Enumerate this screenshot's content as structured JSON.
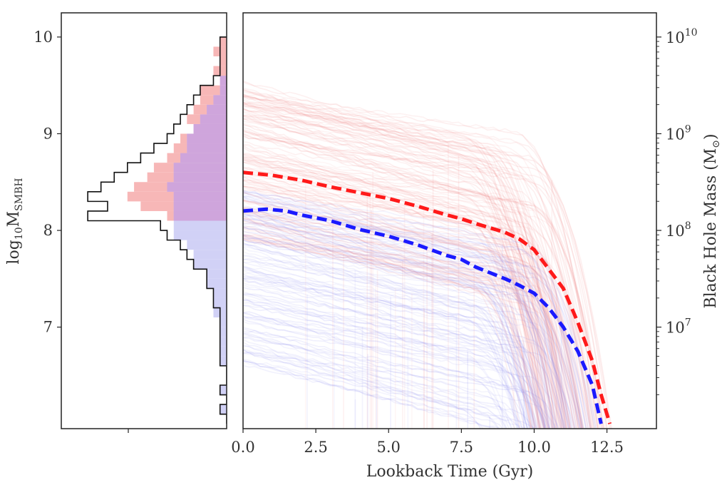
{
  "chart_data": [
    {
      "type": "histogram",
      "panel": "left",
      "orientation": "horizontal",
      "ylabel_main": "log",
      "ylabel_sub": "10",
      "ylabel_tail": "M",
      "ylabel_subscript": "SMBH",
      "ylim": [
        5.95,
        10.25
      ],
      "yticks": [
        7,
        8,
        9,
        10
      ],
      "yticklabels": [
        "7",
        "8",
        "9",
        "10"
      ],
      "bin_edges": [
        6.0,
        6.1,
        6.2,
        6.3,
        6.4,
        6.5,
        6.6,
        6.7,
        6.8,
        6.9,
        7.0,
        7.1,
        7.2,
        7.3,
        7.4,
        7.5,
        7.6,
        7.7,
        7.8,
        7.9,
        8.0,
        8.1,
        8.2,
        8.3,
        8.4,
        8.5,
        8.6,
        8.7,
        8.8,
        8.9,
        9.0,
        9.1,
        9.2,
        9.3,
        9.4,
        9.5,
        9.6,
        9.7,
        9.8,
        9.9,
        10.0
      ],
      "series": [
        {
          "name": "all",
          "style": "step outline",
          "color": "#111111",
          "counts": [
            0,
            1,
            0,
            1,
            0,
            0,
            1,
            1,
            1,
            1,
            1,
            1,
            2,
            2,
            3,
            3,
            5,
            6,
            7,
            9,
            10,
            21,
            18,
            21,
            19,
            17,
            15,
            13,
            11,
            9,
            8,
            7,
            6,
            5,
            4,
            2,
            1,
            1,
            1,
            1,
            0
          ]
        },
        {
          "name": "red population",
          "style": "filled",
          "color": "#f7b7b7",
          "counts": [
            0,
            0,
            0,
            0,
            0,
            0,
            0,
            0,
            0,
            0,
            0,
            0,
            0,
            0,
            0,
            0,
            0,
            0,
            0,
            0,
            0,
            9,
            13,
            15,
            14,
            12,
            11,
            9,
            8,
            7,
            5,
            6,
            5,
            4,
            4,
            1,
            2,
            1,
            2,
            1,
            0
          ]
        },
        {
          "name": "blue population",
          "style": "filled",
          "color": "#c9c9f5",
          "counts": [
            0,
            1,
            0,
            1,
            0,
            0,
            1,
            1,
            1,
            1,
            1,
            2,
            2,
            2,
            3,
            3,
            5,
            5,
            6,
            8,
            8,
            8,
            8,
            8,
            9,
            8,
            8,
            7,
            6,
            6,
            5,
            4,
            3,
            2,
            1,
            1,
            0,
            0,
            0,
            0,
            0
          ]
        }
      ],
      "xmax_count": 25
    },
    {
      "type": "line",
      "panel": "main",
      "xlabel": "Lookback Time (Gyr)",
      "ylabel": "Black Hole Mass (M",
      "ylabel_symbol": "⊙",
      "ylabel_close": ")",
      "xlim": [
        0.0,
        14.2
      ],
      "xticks": [
        0.0,
        2.5,
        5.0,
        7.5,
        10.0,
        12.5
      ],
      "xticklabels": [
        "0.0",
        "2.5",
        "5.0",
        "7.5",
        "10.0",
        "12.5"
      ],
      "ylim": [
        5.95,
        10.25
      ],
      "yscale": "log",
      "right_ticks": [
        {
          "base": "10",
          "exp": "7",
          "value": 7
        },
        {
          "base": "10",
          "exp": "8",
          "value": 8
        },
        {
          "base": "10",
          "exp": "9",
          "value": 9
        },
        {
          "base": "10",
          "exp": "10",
          "value": 10
        }
      ],
      "series": [
        {
          "name": "red population median",
          "style": "dashed",
          "color": "#ff1a1a",
          "x": [
            0.0,
            1.0,
            2.0,
            3.0,
            4.0,
            5.0,
            6.0,
            7.0,
            7.5,
            8.0,
            9.0,
            9.5,
            10.0,
            10.5,
            11.0,
            11.5,
            12.0,
            12.3,
            12.6
          ],
          "y": [
            8.6,
            8.57,
            8.52,
            8.45,
            8.39,
            8.33,
            8.25,
            8.16,
            8.12,
            8.07,
            7.98,
            7.91,
            7.8,
            7.6,
            7.4,
            7.05,
            6.65,
            6.3,
            6.0
          ]
        },
        {
          "name": "blue population median",
          "style": "dashed",
          "color": "#1a1aff",
          "x": [
            0.0,
            0.8,
            1.5,
            2.0,
            3.0,
            4.0,
            5.0,
            6.0,
            7.0,
            7.5,
            8.0,
            8.5,
            9.0,
            9.5,
            10.0,
            10.5,
            11.0,
            11.5,
            12.0,
            12.3
          ],
          "y": [
            8.2,
            8.22,
            8.2,
            8.16,
            8.1,
            8.01,
            7.94,
            7.85,
            7.74,
            7.7,
            7.62,
            7.56,
            7.5,
            7.43,
            7.35,
            7.2,
            7.0,
            6.75,
            6.4,
            6.0
          ]
        }
      ],
      "individual_tracks": {
        "red": {
          "color": "#f08080",
          "start_range": [
            7.9,
            9.55
          ]
        },
        "blue": {
          "color": "#8080ee",
          "start_range": [
            6.6,
            8.45
          ]
        }
      }
    }
  ]
}
